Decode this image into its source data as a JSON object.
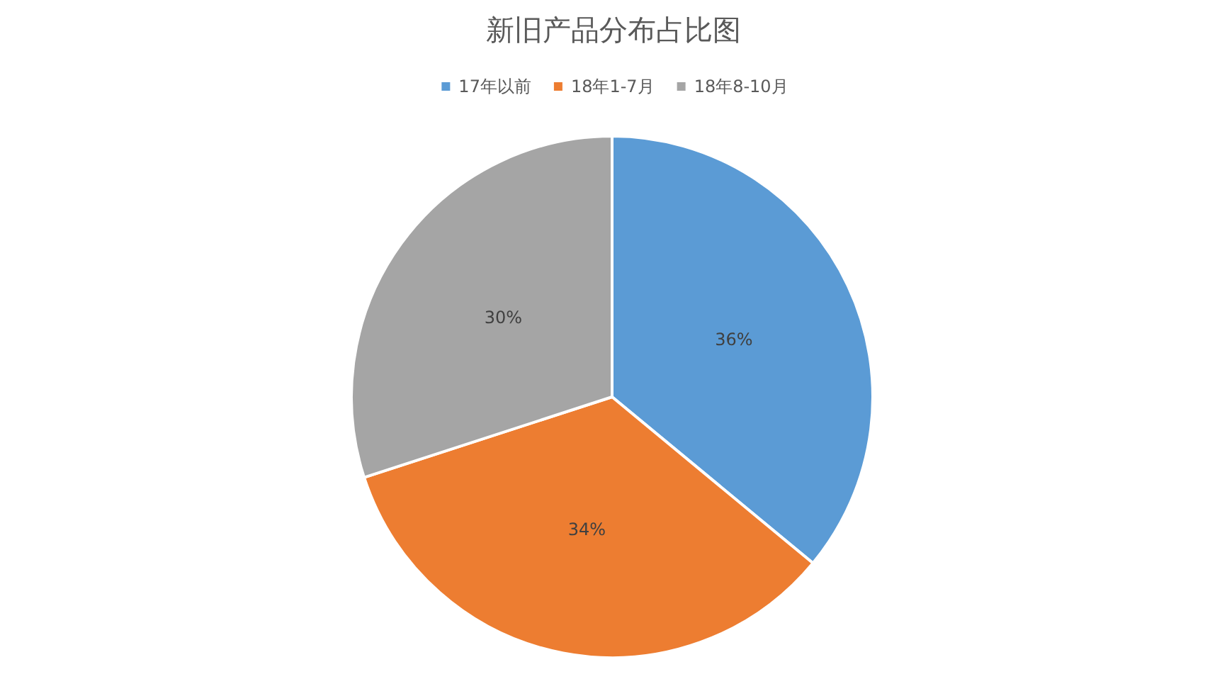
{
  "chart_data": {
    "type": "pie",
    "title": "新旧产品分布占比图",
    "categories": [
      "17年以前",
      "18年1-7月",
      "18年8-10月"
    ],
    "values": [
      36,
      34,
      30
    ],
    "colors": [
      "#5b9bd5",
      "#ed7d31",
      "#a5a5a5"
    ],
    "value_labels": [
      "36%",
      "34%",
      "30%"
    ],
    "legend": "top"
  }
}
